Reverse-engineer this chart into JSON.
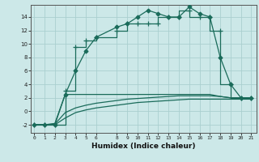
{
  "xlabel": "Humidex (Indice chaleur)",
  "bg_color": "#cce8e8",
  "grid_color": "#aacfcf",
  "line_color": "#1a6b5a",
  "x_ticks": [
    0,
    1,
    2,
    3,
    4,
    5,
    6,
    8,
    9,
    10,
    11,
    12,
    13,
    14,
    15,
    16,
    17,
    18,
    19,
    20,
    21
  ],
  "xlim": [
    -0.3,
    21.5
  ],
  "ylim": [
    -3.2,
    15.8
  ],
  "y_ticks": [
    -2,
    0,
    2,
    4,
    6,
    8,
    10,
    12,
    14
  ],
  "series": [
    {
      "x": [
        0,
        1,
        2,
        3,
        3,
        4,
        4,
        5,
        5,
        6,
        6,
        8,
        8,
        9,
        9,
        10,
        10,
        11,
        11,
        12,
        12,
        13,
        13,
        14,
        14,
        15,
        15,
        16,
        16,
        17,
        17,
        18,
        18,
        19,
        19,
        20,
        20,
        21
      ],
      "y": [
        -2,
        -2,
        -2,
        -2,
        3,
        3,
        9.5,
        9.5,
        10.5,
        10.5,
        11,
        11,
        12,
        12,
        13,
        13,
        13,
        13,
        13,
        13,
        14,
        14,
        14,
        14,
        15,
        15,
        14,
        14,
        14,
        14,
        12,
        12,
        4,
        4,
        2,
        2,
        2,
        2
      ],
      "marker_x": [
        0,
        1,
        2,
        3,
        4,
        5,
        6,
        8,
        9,
        10,
        11,
        12,
        13,
        14,
        15,
        16,
        17,
        18,
        19,
        20,
        21
      ],
      "marker_y": [
        -2,
        -2,
        -2,
        3,
        9.5,
        10.5,
        11,
        12,
        13,
        13,
        13,
        13,
        14,
        14,
        15,
        14,
        14,
        12,
        4,
        2,
        2
      ],
      "marker": "+",
      "markersize": 4,
      "linewidth": 0.9
    },
    {
      "x": [
        0,
        1,
        2,
        3,
        4,
        5,
        6,
        8,
        9,
        10,
        11,
        12,
        13,
        14,
        15,
        16,
        17,
        18,
        19,
        20,
        21
      ],
      "y": [
        -2,
        -2,
        -2,
        2.5,
        6,
        9,
        11,
        12.5,
        13,
        14,
        15,
        14.5,
        14,
        14,
        15.5,
        14.5,
        14,
        8,
        4,
        2,
        2
      ],
      "marker_x": [
        0,
        1,
        2,
        3,
        4,
        5,
        6,
        8,
        9,
        10,
        11,
        12,
        13,
        14,
        15,
        16,
        17,
        18,
        19,
        20,
        21
      ],
      "marker_y": [
        -2,
        -2,
        -2,
        2.5,
        6,
        9,
        11,
        12.5,
        13,
        14,
        15,
        14.5,
        14,
        14,
        15.5,
        14.5,
        14,
        8,
        4,
        2,
        2
      ],
      "marker": "D",
      "markersize": 2.5,
      "linewidth": 0.9
    },
    {
      "x": [
        0,
        1,
        2,
        3,
        4,
        5,
        6,
        8,
        9,
        10,
        11,
        12,
        13,
        14,
        15,
        16,
        17,
        18,
        19,
        20,
        21
      ],
      "y": [
        -2,
        -2,
        -1.8,
        2.5,
        2.5,
        2.5,
        2.5,
        2.5,
        2.5,
        2.5,
        2.5,
        2.5,
        2.5,
        2.5,
        2.5,
        2.5,
        2.5,
        2.2,
        2,
        2,
        2
      ],
      "marker": null,
      "markersize": 0,
      "linewidth": 0.9
    },
    {
      "x": [
        0,
        1,
        2,
        3,
        4,
        5,
        6,
        8,
        9,
        10,
        11,
        12,
        13,
        14,
        15,
        16,
        17,
        18,
        19,
        20,
        21
      ],
      "y": [
        -2,
        -2,
        -1.9,
        -0.2,
        0.5,
        0.9,
        1.2,
        1.6,
        1.8,
        1.9,
        2.0,
        2.1,
        2.2,
        2.3,
        2.3,
        2.3,
        2.3,
        2.2,
        2.0,
        2.0,
        2.0
      ],
      "marker": null,
      "markersize": 0,
      "linewidth": 0.9
    },
    {
      "x": [
        0,
        1,
        2,
        3,
        4,
        5,
        6,
        8,
        9,
        10,
        11,
        12,
        13,
        14,
        15,
        16,
        17,
        18,
        19,
        20,
        21
      ],
      "y": [
        -2,
        -2,
        -2,
        -1.0,
        -0.2,
        0.2,
        0.5,
        0.9,
        1.1,
        1.3,
        1.4,
        1.5,
        1.6,
        1.7,
        1.8,
        1.8,
        1.8,
        1.8,
        1.8,
        1.8,
        1.8
      ],
      "marker": null,
      "markersize": 0,
      "linewidth": 0.9
    }
  ]
}
